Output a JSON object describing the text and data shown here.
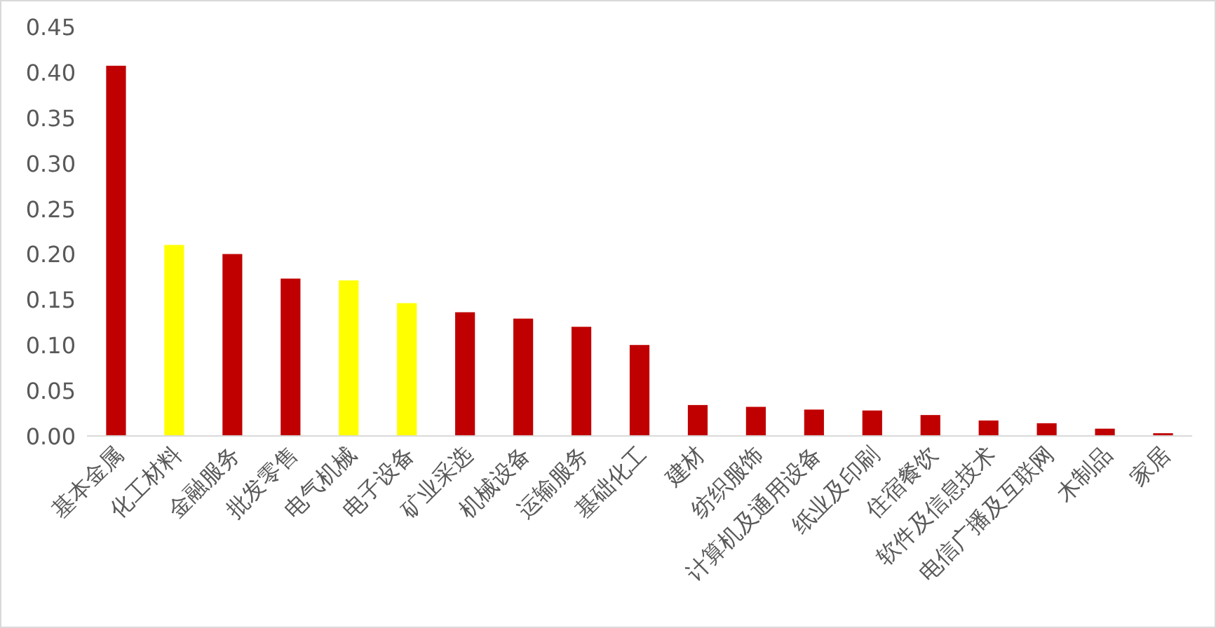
{
  "chart_data": {
    "type": "bar",
    "categories": [
      "基本金属",
      "化工材料",
      "金融服务",
      "批发零售",
      "电气机械",
      "电子设备",
      "矿业采选",
      "机械设备",
      "运输服务",
      "基础化工",
      "建材",
      "纺织服饰",
      "计算机及通用设备",
      "纸业及印刷",
      "住宿餐饮",
      "软件及信息技术",
      "电信广播及互联网",
      "木制品",
      "家居"
    ],
    "values": [
      0.407,
      0.21,
      0.2,
      0.173,
      0.171,
      0.146,
      0.136,
      0.129,
      0.12,
      0.1,
      0.034,
      0.032,
      0.029,
      0.028,
      0.023,
      0.017,
      0.014,
      0.008,
      0.003
    ],
    "colors": [
      "#c00000",
      "#ffff00",
      "#c00000",
      "#c00000",
      "#ffff00",
      "#ffff00",
      "#c00000",
      "#c00000",
      "#c00000",
      "#c00000",
      "#c00000",
      "#c00000",
      "#c00000",
      "#c00000",
      "#c00000",
      "#c00000",
      "#c00000",
      "#c00000",
      "#c00000"
    ],
    "ylim": [
      0,
      0.45
    ],
    "yticks": [
      {
        "value": 0,
        "label": "0.00"
      },
      {
        "value": 0.05,
        "label": "0.05"
      },
      {
        "value": 0.1,
        "label": "0.10"
      },
      {
        "value": 0.15,
        "label": "0.15"
      },
      {
        "value": 0.2,
        "label": "0.20"
      },
      {
        "value": 0.25,
        "label": "0.25"
      },
      {
        "value": 0.3,
        "label": "0.30"
      },
      {
        "value": 0.35,
        "label": "0.35"
      },
      {
        "value": 0.4,
        "label": "0.40"
      },
      {
        "value": 0.45,
        "label": "0.45"
      }
    ],
    "grid": false
  }
}
